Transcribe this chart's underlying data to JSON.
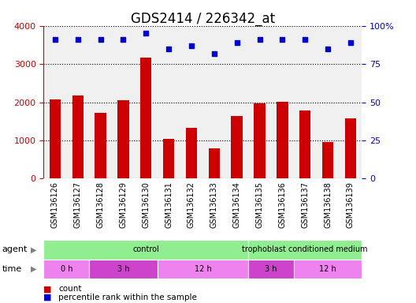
{
  "title": "GDS2414 / 226342_at",
  "samples": [
    "GSM136126",
    "GSM136127",
    "GSM136128",
    "GSM136129",
    "GSM136130",
    "GSM136131",
    "GSM136132",
    "GSM136133",
    "GSM136134",
    "GSM136135",
    "GSM136136",
    "GSM136137",
    "GSM136138",
    "GSM136139"
  ],
  "counts": [
    2080,
    2170,
    1720,
    2050,
    3170,
    1050,
    1330,
    800,
    1640,
    1970,
    2010,
    1790,
    960,
    1570
  ],
  "percentiles": [
    91,
    91,
    91,
    91,
    95,
    85,
    87,
    82,
    89,
    91,
    91,
    91,
    85,
    89
  ],
  "bar_color": "#cc0000",
  "dot_color": "#0000cc",
  "ylim_left": [
    0,
    4000
  ],
  "ylim_right": [
    0,
    100
  ],
  "yticks_left": [
    0,
    1000,
    2000,
    3000,
    4000
  ],
  "yticks_right": [
    0,
    25,
    50,
    75,
    100
  ],
  "agent_groups": [
    {
      "label": "control",
      "start": 0,
      "end": 9,
      "color": "#90EE90"
    },
    {
      "label": "trophoblast conditioned medium",
      "start": 9,
      "end": 14,
      "color": "#90EE90"
    }
  ],
  "time_groups": [
    {
      "label": "0 h",
      "start": 0,
      "end": 2,
      "color": "#EE82EE"
    },
    {
      "label": "3 h",
      "start": 2,
      "end": 5,
      "color": "#CC44CC"
    },
    {
      "label": "12 h",
      "start": 5,
      "end": 9,
      "color": "#EE82EE"
    },
    {
      "label": "3 h",
      "start": 9,
      "end": 11,
      "color": "#CC44CC"
    },
    {
      "label": "12 h",
      "start": 11,
      "end": 14,
      "color": "#EE82EE"
    }
  ],
  "background_color": "#ffffff",
  "plot_bg_color": "#f0f0f0",
  "xtick_bg_color": "#d3d3d3",
  "title_fontsize": 12,
  "tick_fontsize": 7,
  "bar_width": 0.5
}
